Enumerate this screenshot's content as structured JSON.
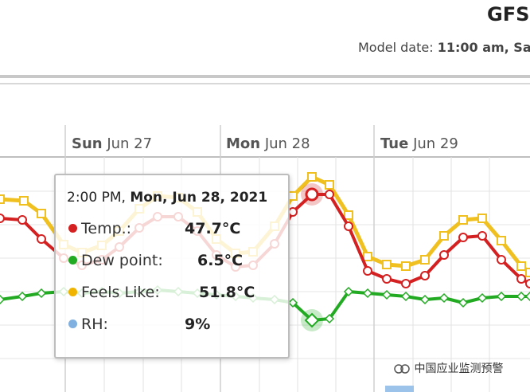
{
  "header": {
    "title": "GFS",
    "model_date_label": "Model date:",
    "model_date_value": "11:00 am, Sa"
  },
  "days": [
    {
      "dow": "Sun",
      "date": "Jun 27"
    },
    {
      "dow": "Mon",
      "date": "Jun 28"
    },
    {
      "dow": "Tue",
      "date": "Jun 29"
    }
  ],
  "tooltip": {
    "title_time": "2:00 PM,",
    "title_date": "Mon, Jun 28, 2021",
    "rows": [
      {
        "label": "Temp.:",
        "value": "47.7°C",
        "color": "#d42020"
      },
      {
        "label": "Dew point:",
        "value": "6.5°C",
        "color": "#22aa22"
      },
      {
        "label": "Feels Like:",
        "value": "51.8°C",
        "color": "#f0b400"
      },
      {
        "label": "RH:",
        "value": "9%",
        "color": "#7fb0e0"
      }
    ]
  },
  "watermark": {
    "text": "中国应业监测预警"
  },
  "colors": {
    "temp": "#d42020",
    "dew": "#22aa22",
    "feels": "#f0c020",
    "rh": "#7fb0e0"
  }
}
